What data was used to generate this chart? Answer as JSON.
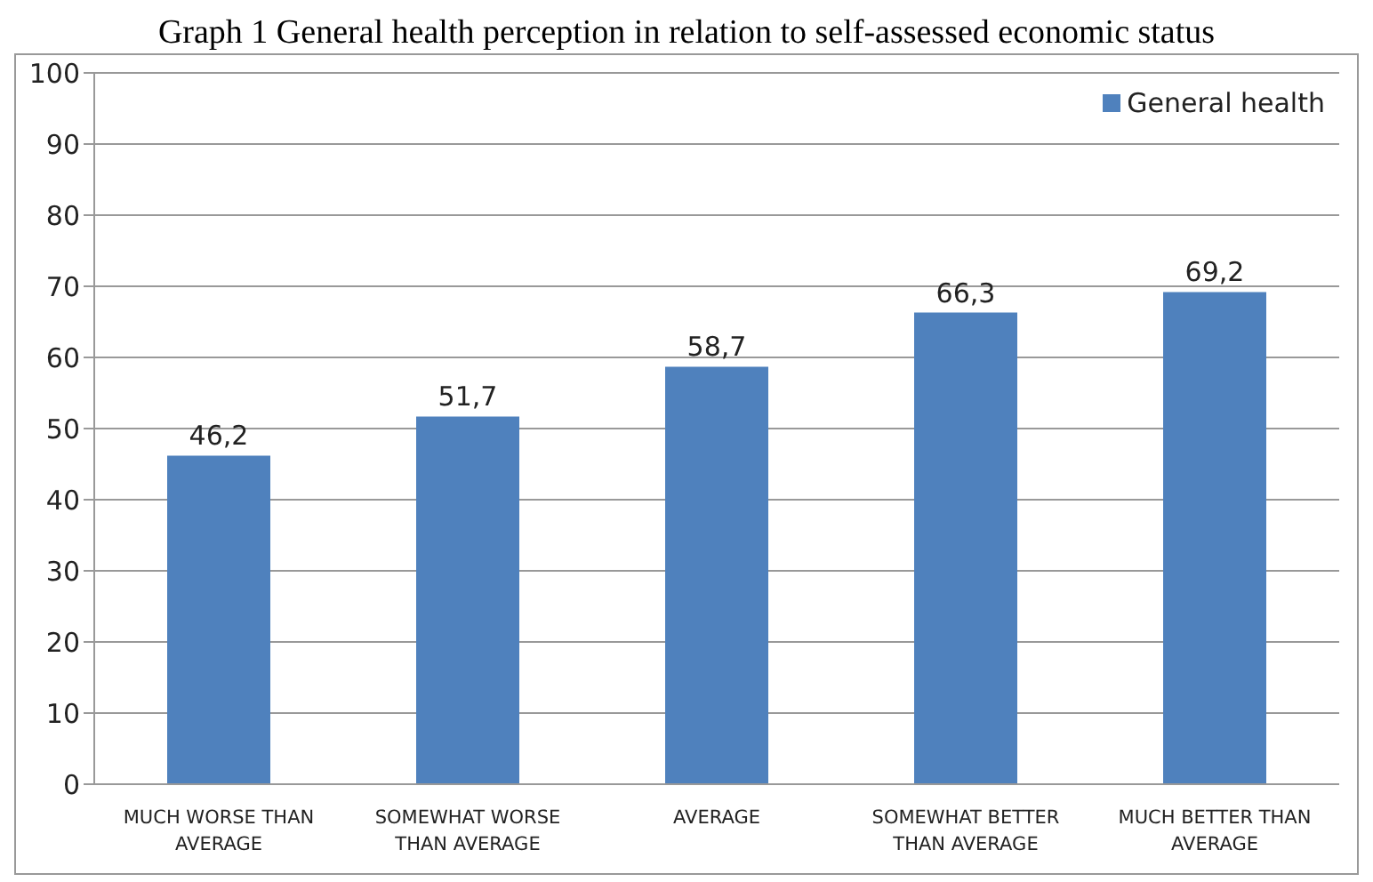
{
  "chart_data": {
    "type": "bar",
    "title": "Graph 1  General health perception in relation to self-assessed economic status",
    "categories": [
      "MUCH WORSE THAN AVERAGE",
      "SOMEWHAT WORSE THAN AVERAGE",
      "AVERAGE",
      "SOMEWHAT BETTER THAN AVERAGE",
      "MUCH BETTER THAN AVERAGE"
    ],
    "series": [
      {
        "name": "General health",
        "color": "#4f81bd",
        "values": [
          46.2,
          51.7,
          58.7,
          66.3,
          69.2
        ],
        "value_labels": [
          "46,2",
          "51,7",
          "58,7",
          "66,3",
          "69,2"
        ]
      }
    ],
    "ylim": [
      0,
      100
    ],
    "yticks": [
      0,
      10,
      20,
      30,
      40,
      50,
      60,
      70,
      80,
      90,
      100
    ],
    "grid": "y",
    "legend": "top right"
  }
}
